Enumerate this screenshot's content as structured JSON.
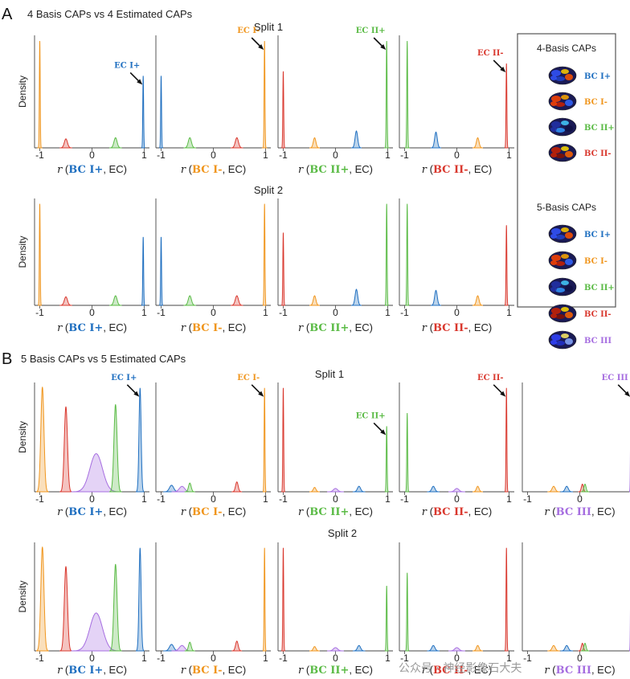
{
  "colors": {
    "BC I+": "#1f6fc0",
    "BC I-": "#f0961e",
    "BC II+": "#5bbb46",
    "BC II-": "#d9382e",
    "BC III": "#a66ee0"
  },
  "panels": [
    {
      "letter": "A",
      "title": "4 Basis CAPs vs 4 Estimated CAPs",
      "ylabel": "Density",
      "splits": [
        "Split 1",
        "Split 2"
      ]
    },
    {
      "letter": "B",
      "title": "5 Basis CAPs vs 5 Estimated CAPs",
      "ylabel": "Density",
      "splits": [
        "Split 1",
        "Split 2"
      ]
    }
  ],
  "xlabel_parts": {
    "r": "r",
    "sep": ", EC)",
    "open": " ("
  },
  "ticks": {
    "neg": "-1",
    "zero": "0",
    "pos": "1"
  },
  "legend": {
    "title4": "4-Basis CAPs",
    "title5": "5-Basis CAPs",
    "items4": [
      "BC I+",
      "BC I-",
      "BC II+",
      "BC II-"
    ],
    "items5": [
      "BC I+",
      "BC I-",
      "BC II+",
      "BC II-",
      "BC III"
    ]
  },
  "watermark": "公众号 · 神经影像石大夫",
  "chart_data": [
    {
      "type": "area",
      "panel": "A",
      "split": "Split 1",
      "xlim": [
        -1.1,
        1.1
      ],
      "subplots": [
        {
          "basis": "BC I+",
          "annotation": "EC I+",
          "ec": "EC",
          "peaks": [
            {
              "cap": "BC I-",
              "x": -1.0,
              "h": 0.95,
              "w": 0.008
            },
            {
              "cap": "BC II-",
              "x": -0.5,
              "h": 0.08,
              "w": 0.03
            },
            {
              "cap": "BC II+",
              "x": 0.45,
              "h": 0.09,
              "w": 0.03
            },
            {
              "cap": "BC I+",
              "x": 0.98,
              "h": 0.64,
              "w": 0.008
            }
          ]
        },
        {
          "basis": "BC I-",
          "annotation": "EC I-",
          "ec": "EC",
          "peaks": [
            {
              "cap": "BC I+",
              "x": -1.0,
              "h": 0.64,
              "w": 0.008
            },
            {
              "cap": "BC II+",
              "x": -0.45,
              "h": 0.09,
              "w": 0.03
            },
            {
              "cap": "BC II-",
              "x": 0.45,
              "h": 0.09,
              "w": 0.03
            },
            {
              "cap": "BC I-",
              "x": 0.98,
              "h": 0.95,
              "w": 0.008
            }
          ]
        },
        {
          "basis": "BC II+",
          "annotation": "EC II+",
          "ec": "EC",
          "peaks": [
            {
              "cap": "BC II-",
              "x": -1.0,
              "h": 0.68,
              "w": 0.008
            },
            {
              "cap": "BC I-",
              "x": -0.4,
              "h": 0.09,
              "w": 0.025
            },
            {
              "cap": "BC I+",
              "x": 0.4,
              "h": 0.15,
              "w": 0.025
            },
            {
              "cap": "BC II+",
              "x": 0.98,
              "h": 0.95,
              "w": 0.008
            }
          ]
        },
        {
          "basis": "BC II-",
          "annotation": "EC II-",
          "ec": "EC",
          "peaks": [
            {
              "cap": "BC II+",
              "x": -0.95,
              "h": 0.95,
              "w": 0.008
            },
            {
              "cap": "BC I+",
              "x": -0.4,
              "h": 0.14,
              "w": 0.025
            },
            {
              "cap": "BC I-",
              "x": 0.4,
              "h": 0.09,
              "w": 0.025
            },
            {
              "cap": "BC II-",
              "x": 0.95,
              "h": 0.75,
              "w": 0.008
            }
          ]
        }
      ]
    },
    {
      "type": "area",
      "panel": "A",
      "split": "Split 2",
      "xlim": [
        -1.1,
        1.1
      ],
      "subplots": [
        {
          "basis": "BC I+",
          "ec": "EC",
          "peaks": [
            {
              "cap": "BC I-",
              "x": -1.0,
              "h": 0.95,
              "w": 0.008
            },
            {
              "cap": "BC II-",
              "x": -0.5,
              "h": 0.08,
              "w": 0.03
            },
            {
              "cap": "BC II+",
              "x": 0.45,
              "h": 0.09,
              "w": 0.03
            },
            {
              "cap": "BC I+",
              "x": 0.98,
              "h": 0.64,
              "w": 0.008
            }
          ]
        },
        {
          "basis": "BC I-",
          "ec": "EC",
          "peaks": [
            {
              "cap": "BC I+",
              "x": -1.0,
              "h": 0.64,
              "w": 0.008
            },
            {
              "cap": "BC II+",
              "x": -0.45,
              "h": 0.09,
              "w": 0.03
            },
            {
              "cap": "BC II-",
              "x": 0.45,
              "h": 0.09,
              "w": 0.03
            },
            {
              "cap": "BC I-",
              "x": 0.98,
              "h": 0.95,
              "w": 0.008
            }
          ]
        },
        {
          "basis": "BC II+",
          "ec": "EC",
          "peaks": [
            {
              "cap": "BC II-",
              "x": -1.0,
              "h": 0.68,
              "w": 0.008
            },
            {
              "cap": "BC I-",
              "x": -0.4,
              "h": 0.09,
              "w": 0.025
            },
            {
              "cap": "BC I+",
              "x": 0.4,
              "h": 0.15,
              "w": 0.025
            },
            {
              "cap": "BC II+",
              "x": 0.98,
              "h": 0.95,
              "w": 0.008
            }
          ]
        },
        {
          "basis": "BC II-",
          "ec": "EC",
          "peaks": [
            {
              "cap": "BC II+",
              "x": -0.95,
              "h": 0.95,
              "w": 0.008
            },
            {
              "cap": "BC I+",
              "x": -0.4,
              "h": 0.14,
              "w": 0.025
            },
            {
              "cap": "BC I-",
              "x": 0.4,
              "h": 0.09,
              "w": 0.025
            },
            {
              "cap": "BC II-",
              "x": 0.95,
              "h": 0.75,
              "w": 0.008
            }
          ]
        }
      ]
    },
    {
      "type": "area",
      "panel": "B",
      "split": "Split 1",
      "xlim": [
        -1.1,
        1.1
      ],
      "subplots": [
        {
          "basis": "BC I+",
          "annotation": "EC I+",
          "ec": "EC",
          "peaks": [
            {
              "cap": "BC I-",
              "x": -0.95,
              "h": 0.96,
              "w": 0.03
            },
            {
              "cap": "BC II-",
              "x": -0.5,
              "h": 0.78,
              "w": 0.03
            },
            {
              "cap": "BC III",
              "x": 0.08,
              "h": 0.35,
              "w": 0.12
            },
            {
              "cap": "BC II+",
              "x": 0.45,
              "h": 0.8,
              "w": 0.03
            },
            {
              "cap": "BC I+",
              "x": 0.92,
              "h": 0.95,
              "w": 0.02
            }
          ]
        },
        {
          "basis": "BC I-",
          "annotation": "EC I-",
          "ec": "EC",
          "peaks": [
            {
              "cap": "BC I+",
              "x": -0.8,
              "h": 0.06,
              "w": 0.04
            },
            {
              "cap": "BC III",
              "x": -0.6,
              "h": 0.05,
              "w": 0.05
            },
            {
              "cap": "BC II+",
              "x": -0.45,
              "h": 0.08,
              "w": 0.025
            },
            {
              "cap": "BC II-",
              "x": 0.45,
              "h": 0.09,
              "w": 0.025
            },
            {
              "cap": "BC I-",
              "x": 0.98,
              "h": 0.95,
              "w": 0.008
            }
          ]
        },
        {
          "basis": "BC II+",
          "annotation": "EC II+",
          "ec": "EC",
          "peaks": [
            {
              "cap": "BC II-",
              "x": -1.0,
              "h": 0.95,
              "w": 0.008
            },
            {
              "cap": "BC I-",
              "x": -0.4,
              "h": 0.04,
              "w": 0.025
            },
            {
              "cap": "BC III",
              "x": 0.0,
              "h": 0.03,
              "w": 0.04
            },
            {
              "cap": "BC I+",
              "x": 0.45,
              "h": 0.05,
              "w": 0.03
            },
            {
              "cap": "BC II+",
              "x": 0.98,
              "h": 0.6,
              "w": 0.008
            }
          ]
        },
        {
          "basis": "BC II-",
          "annotation": "EC II-",
          "ec": "EC",
          "peaks": [
            {
              "cap": "BC II+",
              "x": -0.95,
              "h": 0.72,
              "w": 0.008
            },
            {
              "cap": "BC I+",
              "x": -0.45,
              "h": 0.05,
              "w": 0.03
            },
            {
              "cap": "BC III",
              "x": 0.0,
              "h": 0.03,
              "w": 0.04
            },
            {
              "cap": "BC I-",
              "x": 0.4,
              "h": 0.05,
              "w": 0.025
            },
            {
              "cap": "BC II-",
              "x": 0.95,
              "h": 0.95,
              "w": 0.008
            }
          ]
        }
      ],
      "extra_subplot": {
        "basis": "BC III",
        "annotation": "EC III",
        "ec": "EC",
        "peaks": [
          {
            "cap": "BC I-",
            "x": -0.5,
            "h": 0.05,
            "w": 0.03
          },
          {
            "cap": "BC I+",
            "x": -0.25,
            "h": 0.05,
            "w": 0.03
          },
          {
            "cap": "BC II-",
            "x": 0.05,
            "h": 0.07,
            "w": 0.02
          },
          {
            "cap": "BC II+",
            "x": 0.1,
            "h": 0.07,
            "w": 0.02
          },
          {
            "cap": "BC III",
            "x": 0.98,
            "h": 0.95,
            "w": 0.008
          }
        ]
      }
    },
    {
      "type": "area",
      "panel": "B",
      "split": "Split 2",
      "xlim": [
        -1.1,
        1.1
      ],
      "subplots": [
        {
          "basis": "BC I+",
          "ec": "EC",
          "peaks": [
            {
              "cap": "BC I-",
              "x": -0.95,
              "h": 0.96,
              "w": 0.03
            },
            {
              "cap": "BC II-",
              "x": -0.5,
              "h": 0.78,
              "w": 0.03
            },
            {
              "cap": "BC III",
              "x": 0.08,
              "h": 0.35,
              "w": 0.12
            },
            {
              "cap": "BC II+",
              "x": 0.45,
              "h": 0.8,
              "w": 0.03
            },
            {
              "cap": "BC I+",
              "x": 0.92,
              "h": 0.95,
              "w": 0.02
            }
          ]
        },
        {
          "basis": "BC I-",
          "ec": "EC",
          "peaks": [
            {
              "cap": "BC I+",
              "x": -0.8,
              "h": 0.06,
              "w": 0.04
            },
            {
              "cap": "BC III",
              "x": -0.6,
              "h": 0.05,
              "w": 0.05
            },
            {
              "cap": "BC II+",
              "x": -0.45,
              "h": 0.08,
              "w": 0.025
            },
            {
              "cap": "BC II-",
              "x": 0.45,
              "h": 0.09,
              "w": 0.025
            },
            {
              "cap": "BC I-",
              "x": 0.98,
              "h": 0.95,
              "w": 0.008
            }
          ]
        },
        {
          "basis": "BC II+",
          "ec": "EC",
          "peaks": [
            {
              "cap": "BC II-",
              "x": -1.0,
              "h": 0.95,
              "w": 0.008
            },
            {
              "cap": "BC I-",
              "x": -0.4,
              "h": 0.04,
              "w": 0.025
            },
            {
              "cap": "BC III",
              "x": 0.0,
              "h": 0.03,
              "w": 0.04
            },
            {
              "cap": "BC I+",
              "x": 0.45,
              "h": 0.05,
              "w": 0.03
            },
            {
              "cap": "BC II+",
              "x": 0.98,
              "h": 0.6,
              "w": 0.008
            }
          ]
        },
        {
          "basis": "BC II-",
          "ec": "EC",
          "peaks": [
            {
              "cap": "BC II+",
              "x": -0.95,
              "h": 0.72,
              "w": 0.008
            },
            {
              "cap": "BC I+",
              "x": -0.45,
              "h": 0.05,
              "w": 0.03
            },
            {
              "cap": "BC III",
              "x": 0.0,
              "h": 0.03,
              "w": 0.04
            },
            {
              "cap": "BC I-",
              "x": 0.4,
              "h": 0.05,
              "w": 0.025
            },
            {
              "cap": "BC II-",
              "x": 0.95,
              "h": 0.95,
              "w": 0.008
            }
          ]
        }
      ],
      "extra_subplot": {
        "basis": "BC III",
        "ec": "EC",
        "peaks": [
          {
            "cap": "BC I-",
            "x": -0.5,
            "h": 0.05,
            "w": 0.03
          },
          {
            "cap": "BC I+",
            "x": -0.25,
            "h": 0.05,
            "w": 0.03
          },
          {
            "cap": "BC II-",
            "x": 0.05,
            "h": 0.07,
            "w": 0.02
          },
          {
            "cap": "BC II+",
            "x": 0.1,
            "h": 0.07,
            "w": 0.02
          },
          {
            "cap": "BC III",
            "x": 0.98,
            "h": 0.95,
            "w": 0.008
          }
        ]
      }
    }
  ]
}
